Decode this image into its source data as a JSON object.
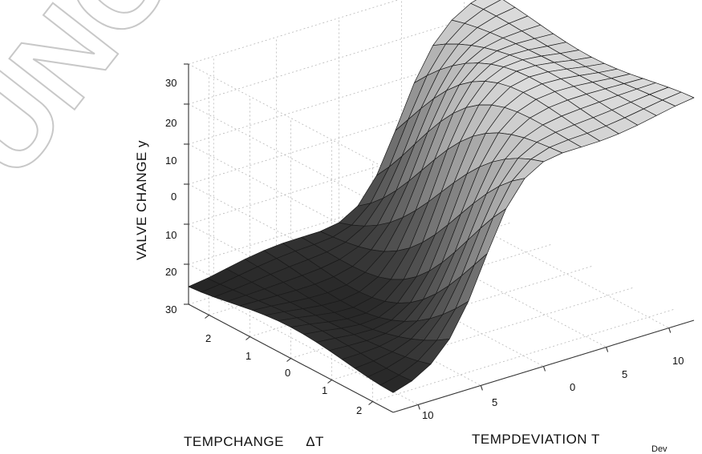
{
  "chart_data": {
    "type": "surface",
    "title": "",
    "zlabel": "VALVE CHANGE y",
    "xlabel": "TEMPCHANGE",
    "xlabel_symbol": "ΔT",
    "ylabel": "TEMPDEVIATION T",
    "ylabel_subscript": "Dev",
    "x_ticks": [
      "2",
      "1",
      "0",
      "1",
      "2"
    ],
    "y_ticks": [
      "10",
      "5",
      "0",
      "5",
      "10"
    ],
    "z_ticks": [
      "30",
      "20",
      "10",
      "0",
      "10",
      "20",
      "30"
    ],
    "x_range": [
      -2.5,
      2.5
    ],
    "y_range": [
      -12,
      12
    ],
    "z_range": [
      -30,
      30
    ],
    "grid": true,
    "colormap": "gray",
    "surface_model": "z ≈ 24·tanh(0.30·y + 0.55·x)",
    "grid_resolution": [
      17,
      17
    ]
  },
  "watermark": {
    "text": "UNCORRECTED",
    "color": "#c8c8c8"
  }
}
